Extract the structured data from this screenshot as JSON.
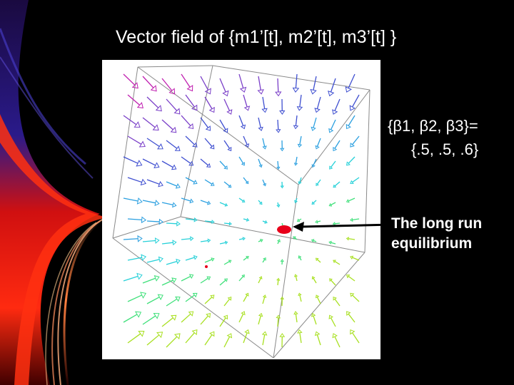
{
  "title": "Vector field of {m1’[t], m2’[t], m3’[t] }",
  "parameters": {
    "line1": "{β1, β2, β3}=",
    "line2": "{.5, .5, .6}"
  },
  "annotation": {
    "line1": "The long run",
    "line2": "equilibrium"
  },
  "colors": {
    "background": "#000000",
    "plot_background": "#ffffff",
    "cube_edge": "#8a8a8a",
    "equilibrium_marker": "#e8001a",
    "arrow_palette": [
      "#c01fb0",
      "#7a3fc8",
      "#3f4fd0",
      "#2a9fe0",
      "#25d0d8",
      "#3fe07a",
      "#a8e020"
    ]
  }
}
